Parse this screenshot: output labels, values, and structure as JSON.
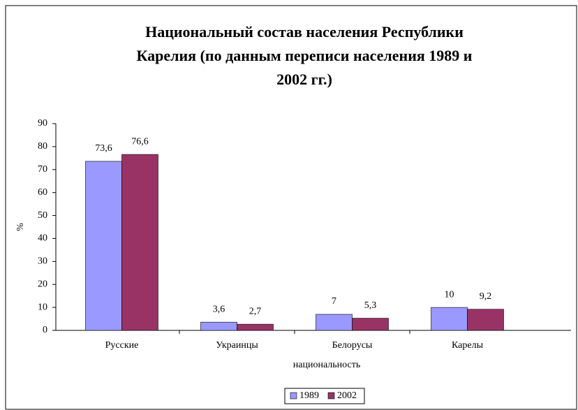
{
  "chart_data": {
    "type": "bar",
    "title": [
      "Национальный состав населения Республики",
      "Карелия (по данным переписи населения 1989 и",
      "2002 гг.)"
    ],
    "categories": [
      "Русские",
      "Украинцы",
      "Белорусы",
      "Карелы"
    ],
    "series": [
      {
        "name": "1989",
        "color": "#9999ff",
        "values": [
          73.6,
          3.6,
          7,
          10
        ],
        "value_labels": [
          "73,6",
          "3,6",
          "7",
          "10"
        ]
      },
      {
        "name": "2002",
        "color": "#993366",
        "values": [
          76.6,
          2.7,
          5.3,
          9.2
        ],
        "value_labels": [
          "76,6",
          "2,7",
          "5,3",
          "9,2"
        ]
      }
    ],
    "x_label": "национальность",
    "y_label": "%",
    "ylim": [
      0,
      90
    ],
    "yticks": [
      0,
      10,
      20,
      30,
      40,
      50,
      60,
      70,
      80,
      90
    ],
    "legend": "bottom"
  }
}
